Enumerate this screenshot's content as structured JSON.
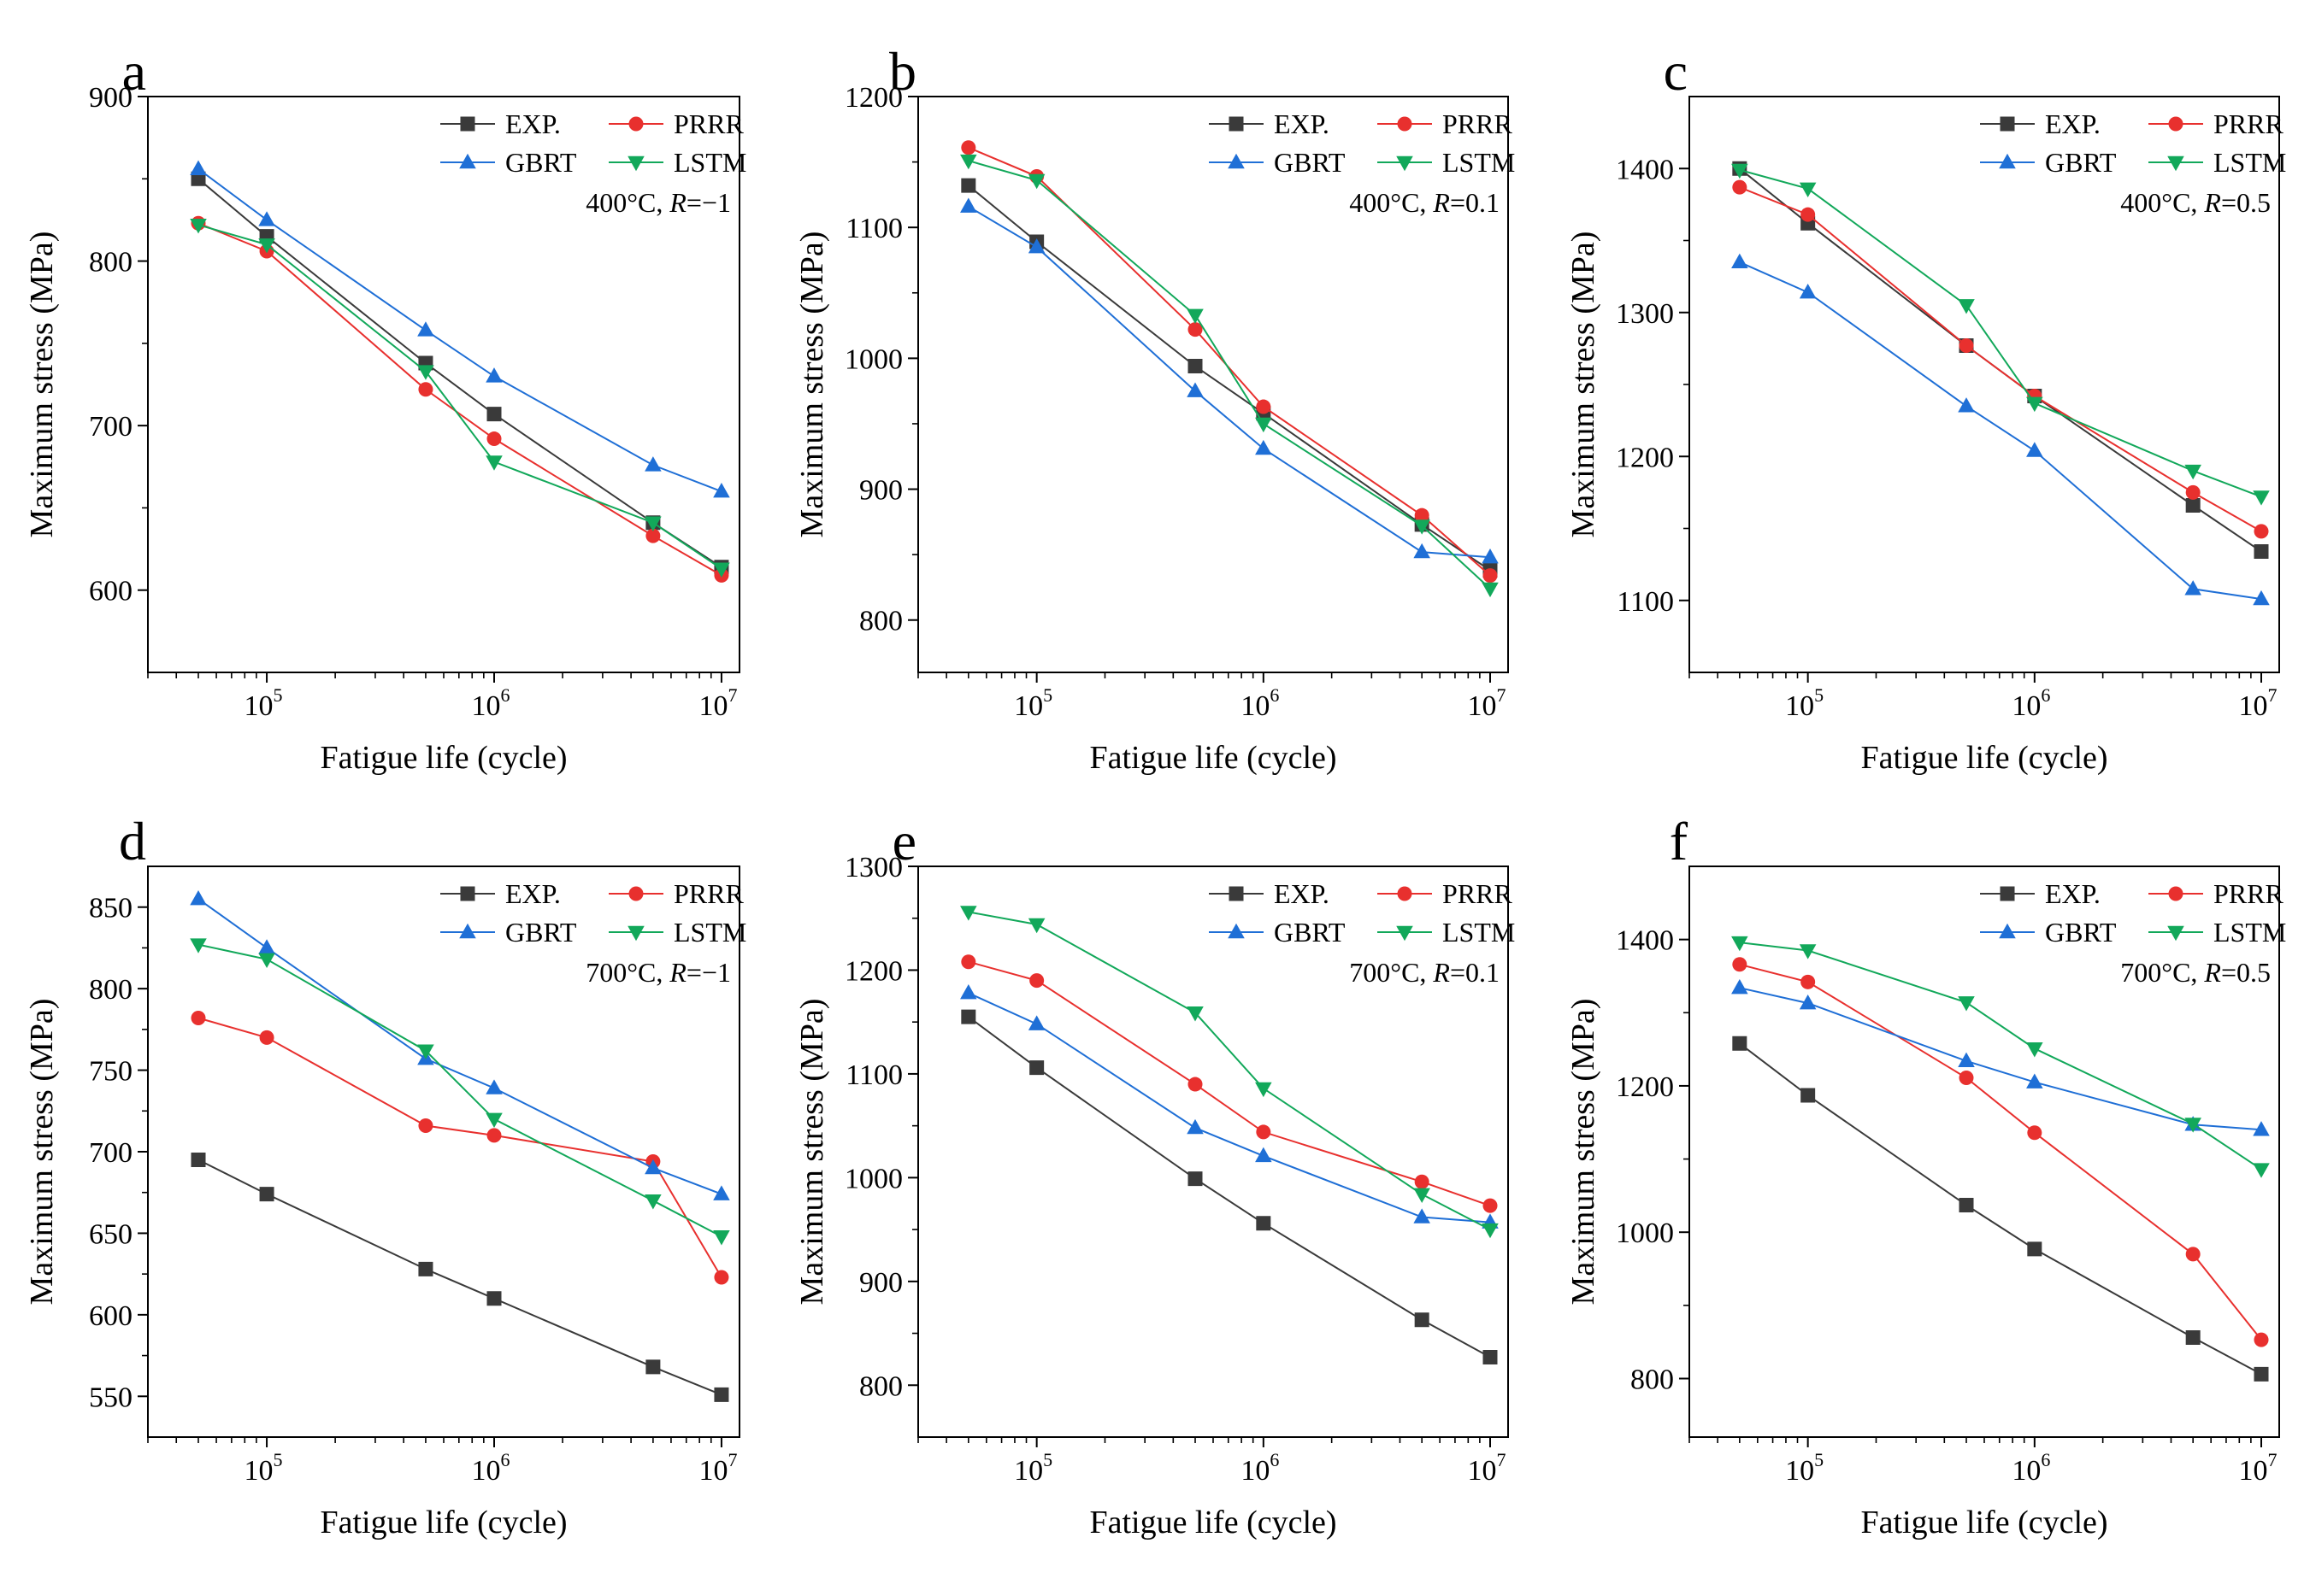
{
  "figure": {
    "legend_labels": [
      "EXP.",
      "PRRR",
      "GBRT",
      "LSTM"
    ],
    "series_colors": {
      "EXP.": "#3a3a3a",
      "PRRR": "#e8302e",
      "GBRT": "#1f6fd6",
      "LSTM": "#12a85a"
    },
    "series_markers": {
      "EXP.": "square",
      "PRRR": "circle",
      "GBRT": "triangle-up",
      "LSTM": "triangle-down"
    }
  },
  "chart_data": [
    {
      "panel": "a",
      "type": "line",
      "title": "400°C, R=−1",
      "condition": {
        "temp": "400°C, ",
        "r": "R",
        "val": "=−1"
      },
      "xlabel": "Fatigue life (cycle)",
      "ylabel": "Maximum stress (MPa)",
      "xscale": "log",
      "xlim": [
        30000,
        12000000
      ],
      "ylim": [
        550,
        900
      ],
      "yticks": [
        600,
        700,
        800,
        900
      ],
      "x": [
        50000,
        100000,
        500000,
        1000000,
        5000000,
        10000000
      ],
      "series": [
        {
          "name": "EXP.",
          "values": [
            850,
            815,
            738,
            707,
            641,
            614
          ]
        },
        {
          "name": "PRRR",
          "values": [
            823,
            806,
            722,
            692,
            633,
            609
          ]
        },
        {
          "name": "GBRT",
          "values": [
            856,
            825,
            758,
            730,
            676,
            660
          ]
        },
        {
          "name": "LSTM",
          "values": [
            822,
            810,
            733,
            678,
            641,
            613
          ]
        }
      ]
    },
    {
      "panel": "b",
      "type": "line",
      "title": "400°C, R=0.1",
      "condition": {
        "temp": "400°C, ",
        "r": "R",
        "val": "=0.1"
      },
      "xlabel": "Fatigue life (cycle)",
      "ylabel": "Maximum stress (MPa)",
      "xscale": "log",
      "xlim": [
        30000,
        12000000
      ],
      "ylim": [
        760,
        1200
      ],
      "yticks": [
        800,
        900,
        1000,
        1100,
        1200
      ],
      "x": [
        50000,
        100000,
        500000,
        1000000,
        5000000,
        10000000
      ],
      "series": [
        {
          "name": "EXP.",
          "values": [
            1132,
            1089,
            994,
            958,
            873,
            838
          ]
        },
        {
          "name": "PRRR",
          "values": [
            1161,
            1139,
            1022,
            963,
            880,
            834
          ]
        },
        {
          "name": "GBRT",
          "values": [
            1116,
            1085,
            975,
            931,
            852,
            848
          ]
        },
        {
          "name": "LSTM",
          "values": [
            1151,
            1136,
            1033,
            950,
            872,
            824
          ]
        }
      ]
    },
    {
      "panel": "c",
      "type": "line",
      "title": "400°C, R=0.5",
      "condition": {
        "temp": "400°C, ",
        "r": "R",
        "val": "=0.5"
      },
      "xlabel": "Fatigue life (cycle)",
      "ylabel": "Maximum stress (MPa)",
      "xscale": "log",
      "xlim": [
        30000,
        12000000
      ],
      "ylim": [
        1050,
        1450
      ],
      "yticks": [
        1100,
        1200,
        1300,
        1400
      ],
      "x": [
        50000,
        100000,
        500000,
        1000000,
        5000000,
        10000000
      ],
      "series": [
        {
          "name": "EXP.",
          "values": [
            1400,
            1362,
            1277,
            1242,
            1166,
            1134
          ]
        },
        {
          "name": "PRRR",
          "values": [
            1387,
            1368,
            1277,
            1242,
            1175,
            1148
          ]
        },
        {
          "name": "GBRT",
          "values": [
            1335,
            1314,
            1235,
            1204,
            1108,
            1101
          ]
        },
        {
          "name": "LSTM",
          "values": [
            1399,
            1386,
            1305,
            1237,
            1190,
            1172
          ]
        }
      ]
    },
    {
      "panel": "d",
      "type": "line",
      "title": "700°C, R=−1",
      "condition": {
        "temp": "700°C, ",
        "r": "R",
        "val": "=−1"
      },
      "xlabel": "Fatigue life (cycle)",
      "ylabel": "Maximum stress (MPa)",
      "xscale": "log",
      "xlim": [
        30000,
        12000000
      ],
      "ylim": [
        525,
        875
      ],
      "yticks": [
        550,
        600,
        650,
        700,
        750,
        800,
        850
      ],
      "x": [
        50000,
        100000,
        500000,
        1000000,
        5000000,
        10000000
      ],
      "series": [
        {
          "name": "EXP.",
          "values": [
            695,
            674,
            628,
            610,
            568,
            551
          ]
        },
        {
          "name": "PRRR",
          "values": [
            782,
            770,
            716,
            710,
            694,
            623
          ]
        },
        {
          "name": "GBRT",
          "values": [
            855,
            825,
            757,
            739,
            690,
            674
          ]
        },
        {
          "name": "LSTM",
          "values": [
            827,
            818,
            762,
            720,
            670,
            648
          ]
        }
      ]
    },
    {
      "panel": "e",
      "type": "line",
      "title": "700°C, R=0.1",
      "condition": {
        "temp": "700°C, ",
        "r": "R",
        "val": "=0.1"
      },
      "xlabel": "Fatigue life (cycle)",
      "ylabel": "Maximum stress (MPa)",
      "xscale": "log",
      "xlim": [
        30000,
        12000000
      ],
      "ylim": [
        750,
        1300
      ],
      "yticks": [
        800,
        900,
        1000,
        1100,
        1200,
        1300
      ],
      "x": [
        50000,
        100000,
        500000,
        1000000,
        5000000,
        10000000
      ],
      "series": [
        {
          "name": "EXP.",
          "values": [
            1155,
            1106,
            999,
            956,
            863,
            827
          ]
        },
        {
          "name": "PRRR",
          "values": [
            1208,
            1190,
            1090,
            1044,
            996,
            973
          ]
        },
        {
          "name": "GBRT",
          "values": [
            1178,
            1148,
            1048,
            1021,
            962,
            957
          ]
        },
        {
          "name": "LSTM",
          "values": [
            1256,
            1244,
            1159,
            1086,
            984,
            950
          ]
        }
      ]
    },
    {
      "panel": "f",
      "type": "line",
      "title": "700°C, R=0.5",
      "condition": {
        "temp": "700°C, ",
        "r": "R",
        "val": "=0.5"
      },
      "xlabel": "Fatigue life (cycle)",
      "ylabel": "Maximum stress (MPa)",
      "xscale": "log",
      "xlim": [
        30000,
        12000000
      ],
      "ylim": [
        720,
        1500
      ],
      "yticks": [
        800,
        1000,
        1200,
        1400
      ],
      "x": [
        50000,
        100000,
        500000,
        1000000,
        5000000,
        10000000
      ],
      "series": [
        {
          "name": "EXP.",
          "values": [
            1258,
            1187,
            1037,
            977,
            856,
            806
          ]
        },
        {
          "name": "PRRR",
          "values": [
            1366,
            1342,
            1211,
            1136,
            970,
            853
          ]
        },
        {
          "name": "GBRT",
          "values": [
            1334,
            1313,
            1234,
            1205,
            1147,
            1140
          ]
        },
        {
          "name": "LSTM",
          "values": [
            1396,
            1385,
            1314,
            1251,
            1148,
            1086
          ]
        }
      ]
    }
  ]
}
